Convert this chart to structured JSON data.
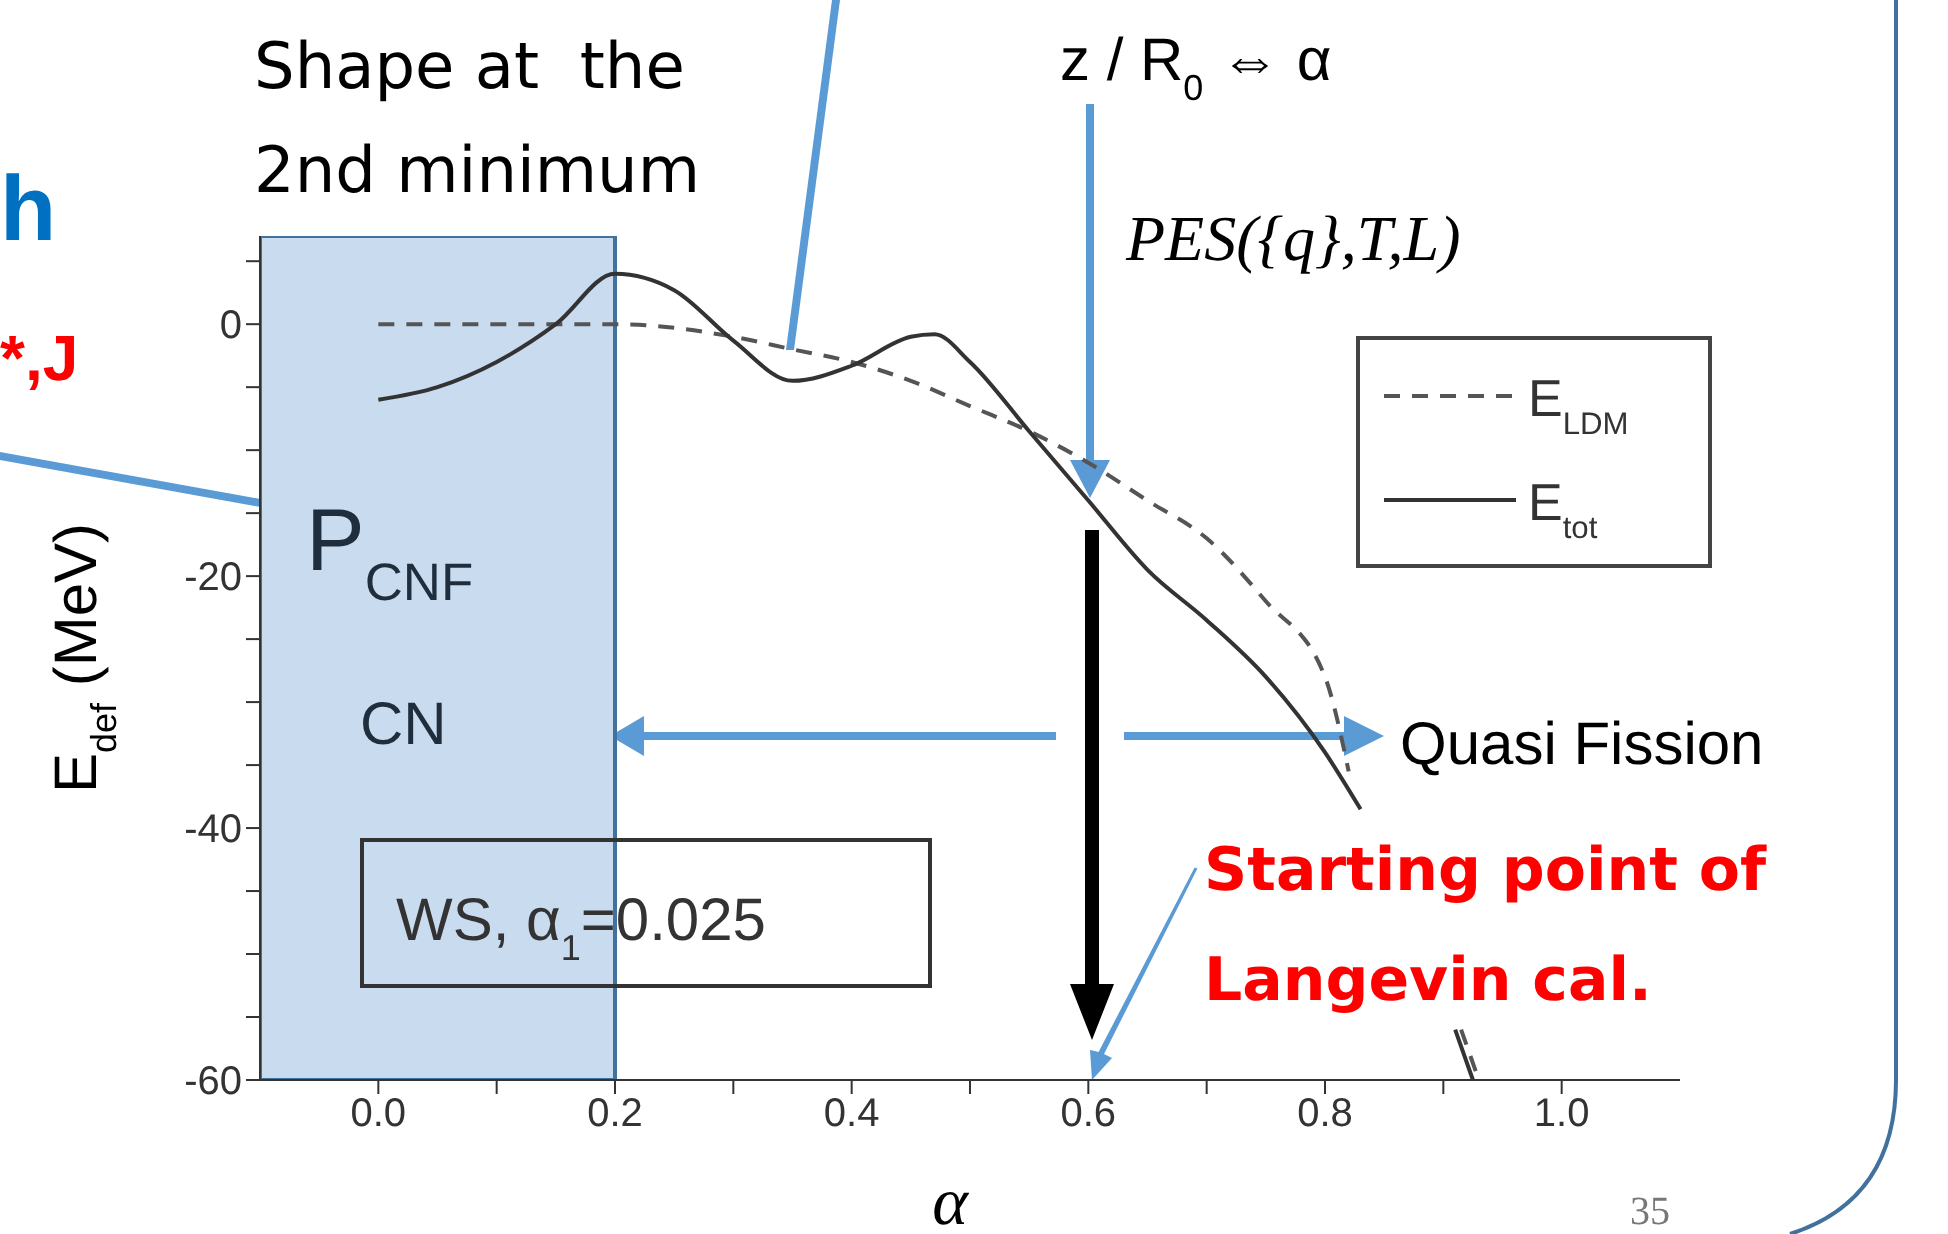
{
  "chart_data": {
    "type": "line",
    "xlabel": "α",
    "ylabel": "E$_{def}$ (MeV)",
    "xlim": [
      -0.1,
      1.1
    ],
    "ylim": [
      -60,
      7
    ],
    "xticks": [
      {
        "value": 0,
        "label": "0.0"
      },
      {
        "value": 0.1,
        "label": null
      },
      {
        "value": 0.2,
        "label": "0.2"
      },
      {
        "value": 0.3,
        "label": null
      },
      {
        "value": 0.4,
        "label": "0.4"
      },
      {
        "value": 0.5,
        "label": null
      },
      {
        "value": 0.6,
        "label": "0.6"
      },
      {
        "value": 0.7,
        "label": null
      },
      {
        "value": 0.8,
        "label": "0.8"
      },
      {
        "value": 0.9,
        "label": null
      },
      {
        "value": 1,
        "label": "1.0"
      }
    ],
    "yticks": [
      -60,
      {
        "value": -55,
        "label": null
      },
      {
        "value": -50,
        "label": null
      },
      {
        "value": -45,
        "label": null
      },
      -40,
      {
        "value": -35,
        "label": null
      },
      {
        "value": -30,
        "label": null
      },
      {
        "value": -25,
        "label": null
      },
      -20,
      {
        "value": -15,
        "label": null
      },
      {
        "value": -10,
        "label": null
      },
      {
        "value": -5,
        "label": null
      },
      0,
      {
        "value": 5,
        "label": null
      }
    ],
    "series": [
      {
        "name": "E$_{LDM}$",
        "color": "#555555",
        "line_style": "dashed",
        "x": [
          0,
          0.1,
          0.2,
          0.3,
          0.35,
          0.4,
          0.45,
          0.5,
          0.55,
          0.6,
          0.65,
          0.7,
          0.75,
          0.8,
          0.82,
          0.85,
          0.9,
          0.915,
          0.93
        ],
        "values": [
          0,
          0,
          0,
          -1,
          -2,
          -3,
          -4.5,
          -6.5,
          -8.5,
          -11,
          -14,
          -17,
          -22,
          -28,
          -35.5,
          null,
          null,
          -56,
          -60
        ]
      },
      {
        "name": "E$_{tot}$",
        "color": "#333333",
        "line_style": "solid",
        "x": [
          0,
          0.05,
          0.1,
          0.15,
          0.2,
          0.25,
          0.3,
          0.35,
          0.4,
          0.45,
          0.47,
          0.5,
          0.55,
          0.6,
          0.65,
          0.7,
          0.75,
          0.8,
          0.83,
          0.87,
          0.9,
          0.91,
          0.925
        ],
        "values": [
          -6,
          -5,
          -3,
          0,
          4,
          2.7,
          -1.3,
          -4.5,
          -3.3,
          -1,
          -0.8,
          -3,
          -8.5,
          -14,
          -19.5,
          -23.5,
          -28,
          -34,
          -38.5,
          null,
          null,
          -56,
          -60
        ]
      }
    ],
    "bands": [
      {
        "axis": "x",
        "from": -0.1,
        "to": 0.2,
        "color": "#c9dcef"
      }
    ],
    "legend": "right",
    "marker": "none",
    "grid": false,
    "annotations": [
      "Shape at  the\n2nd minimum",
      "z / R$_{0}$ ⇔ α",
      "PES({q},T,L)",
      "P$_{CNF}$",
      "CN",
      "Quasi Fission",
      "WS, α$_{1}$=0.025",
      "Starting point of\nLangevin cal.",
      "35",
      "h",
      "*,J"
    ]
  }
}
